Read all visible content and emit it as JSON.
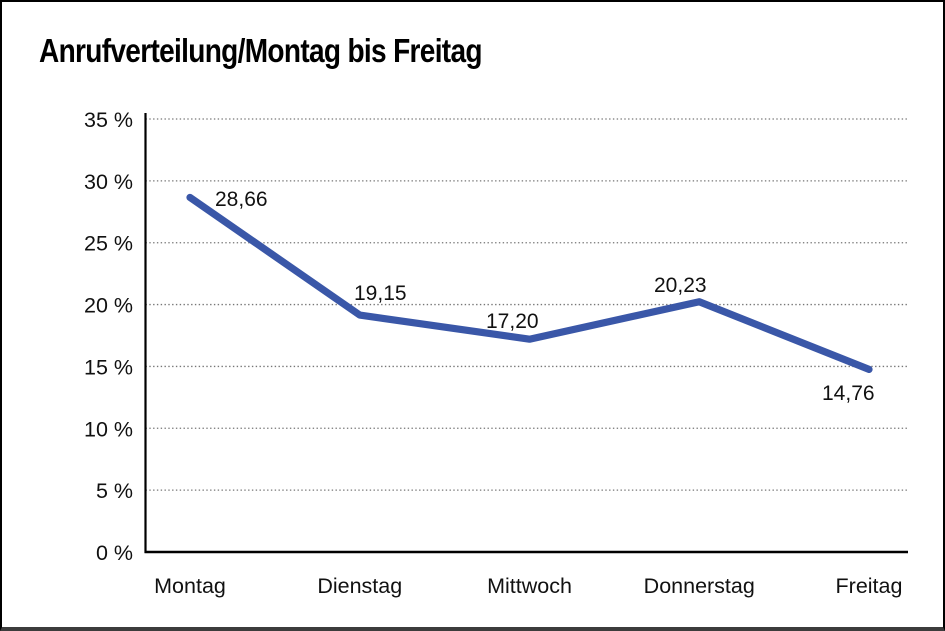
{
  "page": {
    "title": "Anrufverteilung/Montag bis Freitag"
  },
  "chart_data": {
    "type": "line",
    "title": "Anrufverteilung/Montag bis Freitag",
    "categories": [
      "Montag",
      "Dienstag",
      "Mittwoch",
      "Donnerstag",
      "Freitag"
    ],
    "series": [
      {
        "name": "Anrufverteilung",
        "values": [
          28.66,
          19.15,
          17.2,
          20.23,
          14.76
        ],
        "value_labels": [
          "28,66",
          "19,15",
          "17,20",
          "20,23",
          "14,76"
        ]
      }
    ],
    "xlabel": "",
    "ylabel": "",
    "ylim": [
      0,
      35
    ],
    "y_tick_step": 5,
    "y_tick_labels": [
      "0 %",
      "5 %",
      "10 %",
      "15 %",
      "20 %",
      "25 %",
      "30 %",
      "35 %"
    ],
    "grid": "horizontal-dotted",
    "legend_position": "none",
    "colors": {
      "line": "#3A57A8",
      "axis": "#000000",
      "gridline": "#767676",
      "text": "#111111"
    }
  }
}
